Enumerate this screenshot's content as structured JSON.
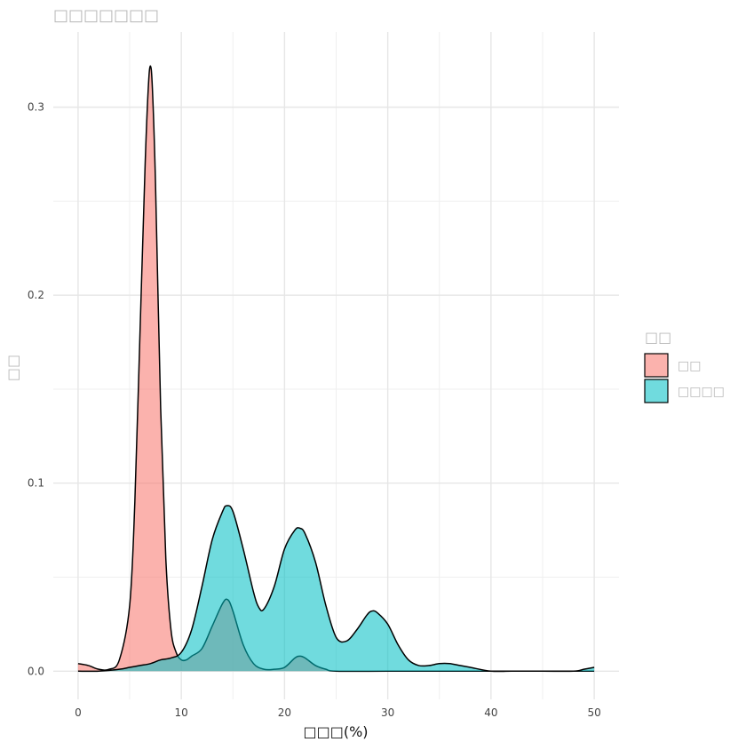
{
  "chart_data": {
    "type": "area",
    "title": "□□□□□□□",
    "xlabel": "□□□(%)",
    "ylabel": "□□",
    "xlim": [
      -2.4,
      52.4
    ],
    "ylim": [
      -0.015,
      0.34
    ],
    "x_ticks": [
      0,
      10,
      20,
      30,
      40,
      50
    ],
    "y_ticks": [
      0.0,
      0.1,
      0.2,
      0.3
    ],
    "x_tick_labels": [
      "0",
      "10",
      "20",
      "30",
      "40",
      "50"
    ],
    "y_tick_labels": [
      "0.0",
      "0.1",
      "0.2",
      "0.3"
    ],
    "grid": true,
    "legend": {
      "title": "□□",
      "position": "right"
    },
    "series": [
      {
        "name": "□□",
        "color": "#F8766D",
        "x": [
          0,
          1,
          2,
          3,
          4,
          5,
          5.5,
          6,
          6.5,
          6.8,
          7,
          7.2,
          7.5,
          8,
          8.5,
          9,
          9.5,
          10,
          10.5,
          11,
          12,
          13,
          14,
          14.5,
          15,
          16,
          17,
          18,
          19,
          20,
          21,
          21.5,
          22,
          23,
          24,
          25,
          30,
          35,
          40,
          45,
          50
        ],
        "y": [
          0.004,
          0.003,
          0.001,
          0.001,
          0.006,
          0.035,
          0.09,
          0.18,
          0.27,
          0.31,
          0.322,
          0.31,
          0.26,
          0.14,
          0.06,
          0.022,
          0.01,
          0.006,
          0.006,
          0.008,
          0.012,
          0.024,
          0.036,
          0.038,
          0.032,
          0.014,
          0.004,
          0.001,
          0.001,
          0.002,
          0.007,
          0.008,
          0.007,
          0.003,
          0.001,
          0.0,
          0.0,
          0.0,
          0.0,
          0.0,
          0.0
        ]
      },
      {
        "name": "□□□□",
        "color": "#00BFC4",
        "x": [
          0,
          2,
          4,
          5,
          6,
          7,
          8,
          9,
          10,
          11,
          12,
          13,
          14,
          14.4,
          15,
          16,
          17,
          17.5,
          18,
          19,
          20,
          21,
          21.5,
          22,
          23,
          24,
          25,
          26,
          27,
          28,
          28.5,
          29,
          30,
          31,
          32,
          33,
          34,
          35,
          36,
          37,
          38,
          40,
          42,
          45,
          48,
          49,
          50
        ],
        "y": [
          0.0,
          0.0,
          0.001,
          0.002,
          0.003,
          0.004,
          0.006,
          0.007,
          0.01,
          0.022,
          0.045,
          0.07,
          0.085,
          0.088,
          0.085,
          0.065,
          0.042,
          0.034,
          0.033,
          0.045,
          0.065,
          0.075,
          0.076,
          0.073,
          0.058,
          0.035,
          0.018,
          0.016,
          0.022,
          0.03,
          0.032,
          0.031,
          0.025,
          0.014,
          0.006,
          0.003,
          0.003,
          0.004,
          0.004,
          0.003,
          0.002,
          0.0,
          0.0,
          0.0,
          0.0,
          0.001,
          0.002
        ]
      }
    ]
  }
}
